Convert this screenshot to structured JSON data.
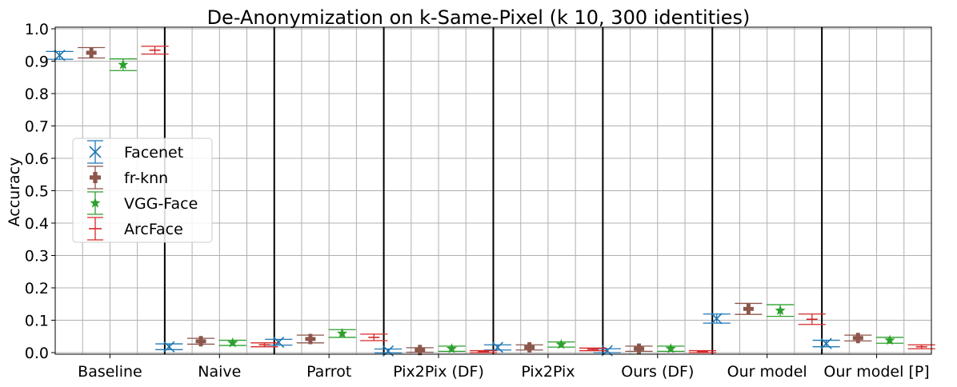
{
  "chart_data": {
    "type": "scatter",
    "title": "De-Anonymization on k-Same-Pixel (k 10, 300 identities)",
    "xlabel": "",
    "ylabel": "Accuracy",
    "ylim": [
      -0.005,
      1.005
    ],
    "yticks": [
      0.0,
      0.1,
      0.2,
      0.3,
      0.4,
      0.5,
      0.6,
      0.7,
      0.8,
      0.9,
      1.0
    ],
    "ytick_labels": [
      "0.0",
      "0.1",
      "0.2",
      "0.3",
      "0.4",
      "0.5",
      "0.6",
      "0.7",
      "0.8",
      "0.9",
      "1.0"
    ],
    "categories": [
      "Baseline",
      "Naive",
      "Parrot",
      "Pix2Pix (DF)",
      "Pix2Pix",
      "Ours (DF)",
      "Our model",
      "Our model [P]"
    ],
    "grid": true,
    "legend_position": "center-left",
    "series": [
      {
        "name": "Facenet",
        "color": "#1f77b4",
        "marker": "x",
        "values": [
          0.918,
          0.018,
          0.032,
          0.005,
          0.016,
          0.006,
          0.105,
          0.028
        ],
        "errors": [
          0.012,
          0.009,
          0.009,
          0.006,
          0.008,
          0.006,
          0.014,
          0.01
        ]
      },
      {
        "name": "fr-knn",
        "color": "#8c564b",
        "marker": "plus",
        "values": [
          0.926,
          0.035,
          0.042,
          0.008,
          0.016,
          0.012,
          0.135,
          0.045
        ],
        "errors": [
          0.016,
          0.009,
          0.012,
          0.007,
          0.008,
          0.008,
          0.017,
          0.009
        ]
      },
      {
        "name": "VGG-Face",
        "color": "#2ca02c",
        "marker": "star",
        "values": [
          0.889,
          0.03,
          0.059,
          0.012,
          0.025,
          0.012,
          0.13,
          0.038
        ],
        "errors": [
          0.018,
          0.008,
          0.012,
          0.008,
          0.008,
          0.008,
          0.018,
          0.009
        ]
      },
      {
        "name": "ArcFace",
        "color": "#d62728",
        "marker": "bar",
        "values": [
          0.934,
          0.024,
          0.047,
          0.003,
          0.01,
          0.003,
          0.103,
          0.018
        ],
        "errors": [
          0.012,
          0.006,
          0.01,
          0.003,
          0.004,
          0.003,
          0.016,
          0.006
        ]
      }
    ]
  }
}
